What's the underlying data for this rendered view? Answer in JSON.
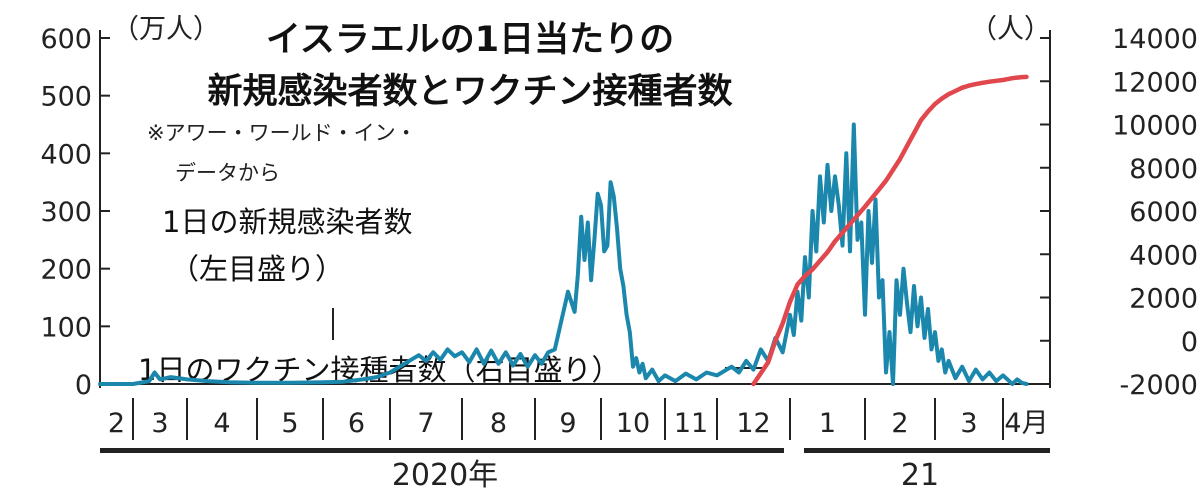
{
  "chart_data": {
    "type": "line",
    "title": "イスラエルの1日当たりの新規感染者数とワクチン接種者数",
    "note_lines": [
      "※アワー・ワールド・イン・",
      "データから"
    ],
    "left_unit": "（万人）",
    "right_unit": "（人）",
    "left_ticks": [
      "600",
      "500",
      "400",
      "300",
      "200",
      "100",
      "0"
    ],
    "right_ticks": [
      "14000",
      "12000",
      "10000",
      "8000",
      "6000",
      "4000",
      "2000",
      "0",
      "-2000"
    ],
    "y_left_range": [
      0,
      600
    ],
    "y_right_range": [
      -2000,
      14000
    ],
    "months": [
      "2",
      "3",
      "4",
      "5",
      "6",
      "7",
      "8",
      "9",
      "10",
      "11",
      "12",
      "1",
      "2",
      "3",
      "4月"
    ],
    "years": [
      "2020年",
      "21"
    ],
    "series": [
      {
        "name": "1日の新規感染者数",
        "sub": "（左目盛り）",
        "axis": "left",
        "color": "#1b87ad",
        "points": [
          [
            0.0,
            0
          ],
          [
            0.5,
            0
          ],
          [
            1.0,
            0
          ],
          [
            1.3,
            5
          ],
          [
            1.4,
            20
          ],
          [
            1.5,
            8
          ],
          [
            1.7,
            12
          ],
          [
            2.0,
            8
          ],
          [
            2.3,
            5
          ],
          [
            2.6,
            3
          ],
          [
            3.0,
            2
          ],
          [
            3.5,
            2
          ],
          [
            4.0,
            3
          ],
          [
            4.3,
            4
          ],
          [
            4.6,
            8
          ],
          [
            4.8,
            12
          ],
          [
            5.0,
            20
          ],
          [
            5.2,
            35
          ],
          [
            5.4,
            50
          ],
          [
            5.5,
            40
          ],
          [
            5.6,
            55
          ],
          [
            5.7,
            42
          ],
          [
            5.8,
            60
          ],
          [
            5.9,
            48
          ],
          [
            6.0,
            55
          ],
          [
            6.1,
            38
          ],
          [
            6.2,
            60
          ],
          [
            6.3,
            35
          ],
          [
            6.4,
            58
          ],
          [
            6.5,
            35
          ],
          [
            6.6,
            55
          ],
          [
            6.7,
            32
          ],
          [
            6.8,
            52
          ],
          [
            6.9,
            30
          ],
          [
            7.0,
            50
          ],
          [
            7.1,
            35
          ],
          [
            7.2,
            55
          ],
          [
            7.3,
            60
          ],
          [
            7.4,
            110
          ],
          [
            7.5,
            160
          ],
          [
            7.6,
            125
          ],
          [
            7.65,
            190
          ],
          [
            7.7,
            290
          ],
          [
            7.75,
            215
          ],
          [
            7.8,
            280
          ],
          [
            7.85,
            180
          ],
          [
            7.9,
            250
          ],
          [
            7.95,
            330
          ],
          [
            8.0,
            310
          ],
          [
            8.05,
            230
          ],
          [
            8.1,
            240
          ],
          [
            8.15,
            350
          ],
          [
            8.2,
            325
          ],
          [
            8.25,
            270
          ],
          [
            8.3,
            200
          ],
          [
            8.35,
            170
          ],
          [
            8.4,
            120
          ],
          [
            8.45,
            90
          ],
          [
            8.5,
            30
          ],
          [
            8.55,
            45
          ],
          [
            8.6,
            20
          ],
          [
            8.65,
            35
          ],
          [
            8.7,
            10
          ],
          [
            8.8,
            25
          ],
          [
            8.9,
            5
          ],
          [
            9.0,
            15
          ],
          [
            9.2,
            5
          ],
          [
            9.4,
            18
          ],
          [
            9.6,
            8
          ],
          [
            9.8,
            20
          ],
          [
            10.0,
            15
          ],
          [
            10.2,
            30
          ],
          [
            10.3,
            20
          ],
          [
            10.4,
            40
          ],
          [
            10.5,
            25
          ],
          [
            10.6,
            60
          ],
          [
            10.7,
            40
          ],
          [
            10.8,
            80
          ],
          [
            10.9,
            55
          ],
          [
            11.0,
            120
          ],
          [
            11.05,
            85
          ],
          [
            11.1,
            160
          ],
          [
            11.15,
            110
          ],
          [
            11.2,
            220
          ],
          [
            11.25,
            150
          ],
          [
            11.3,
            300
          ],
          [
            11.35,
            230
          ],
          [
            11.4,
            360
          ],
          [
            11.45,
            280
          ],
          [
            11.5,
            380
          ],
          [
            11.55,
            300
          ],
          [
            11.6,
            360
          ],
          [
            11.65,
            310
          ],
          [
            11.7,
            240
          ],
          [
            11.75,
            400
          ],
          [
            11.8,
            230
          ],
          [
            11.85,
            450
          ],
          [
            11.9,
            250
          ],
          [
            11.95,
            280
          ],
          [
            12.0,
            120
          ],
          [
            12.05,
            300
          ],
          [
            12.1,
            210
          ],
          [
            12.15,
            320
          ],
          [
            12.2,
            150
          ],
          [
            12.25,
            180
          ],
          [
            12.3,
            20
          ],
          [
            12.35,
            90
          ],
          [
            12.4,
            0
          ],
          [
            12.45,
            180
          ],
          [
            12.5,
            120
          ],
          [
            12.55,
            200
          ],
          [
            12.6,
            140
          ],
          [
            12.65,
            90
          ],
          [
            12.7,
            170
          ],
          [
            12.75,
            100
          ],
          [
            12.8,
            150
          ],
          [
            12.85,
            80
          ],
          [
            12.9,
            130
          ],
          [
            12.95,
            60
          ],
          [
            13.0,
            90
          ],
          [
            13.05,
            40
          ],
          [
            13.1,
            60
          ],
          [
            13.15,
            20
          ],
          [
            13.2,
            40
          ],
          [
            13.3,
            10
          ],
          [
            13.4,
            30
          ],
          [
            13.5,
            5
          ],
          [
            13.6,
            25
          ],
          [
            13.7,
            8
          ],
          [
            13.8,
            20
          ],
          [
            13.9,
            5
          ],
          [
            14.0,
            15
          ],
          [
            14.2,
            0
          ],
          [
            14.3,
            8
          ],
          [
            14.4,
            2
          ],
          [
            14.5,
            0
          ]
        ]
      },
      {
        "name": "1日のワクチン接種者数",
        "sub": "（右目盛り）",
        "axis": "right",
        "color": "#e0484d",
        "points": [
          [
            10.5,
            -2000
          ],
          [
            10.6,
            -1500
          ],
          [
            10.7,
            -1000
          ],
          [
            10.8,
            0
          ],
          [
            10.9,
            800
          ],
          [
            11.0,
            1800
          ],
          [
            11.1,
            2600
          ],
          [
            11.2,
            3000
          ],
          [
            11.3,
            3300
          ],
          [
            11.4,
            3700
          ],
          [
            11.5,
            4100
          ],
          [
            11.6,
            4600
          ],
          [
            11.7,
            5000
          ],
          [
            11.8,
            5400
          ],
          [
            11.9,
            5800
          ],
          [
            12.0,
            6200
          ],
          [
            12.1,
            6600
          ],
          [
            12.2,
            7000
          ],
          [
            12.3,
            7400
          ],
          [
            12.4,
            7900
          ],
          [
            12.5,
            8400
          ],
          [
            12.6,
            9000
          ],
          [
            12.7,
            9600
          ],
          [
            12.8,
            10200
          ],
          [
            12.9,
            10600
          ],
          [
            13.0,
            10950
          ],
          [
            13.1,
            11200
          ],
          [
            13.2,
            11400
          ],
          [
            13.3,
            11550
          ],
          [
            13.4,
            11700
          ],
          [
            13.5,
            11800
          ],
          [
            13.6,
            11870
          ],
          [
            13.7,
            11930
          ],
          [
            13.8,
            11980
          ],
          [
            13.9,
            12020
          ],
          [
            14.0,
            12060
          ],
          [
            14.1,
            12100
          ],
          [
            14.2,
            12140
          ],
          [
            14.3,
            12170
          ],
          [
            14.4,
            12190
          ],
          [
            14.5,
            12200
          ]
        ]
      }
    ]
  }
}
